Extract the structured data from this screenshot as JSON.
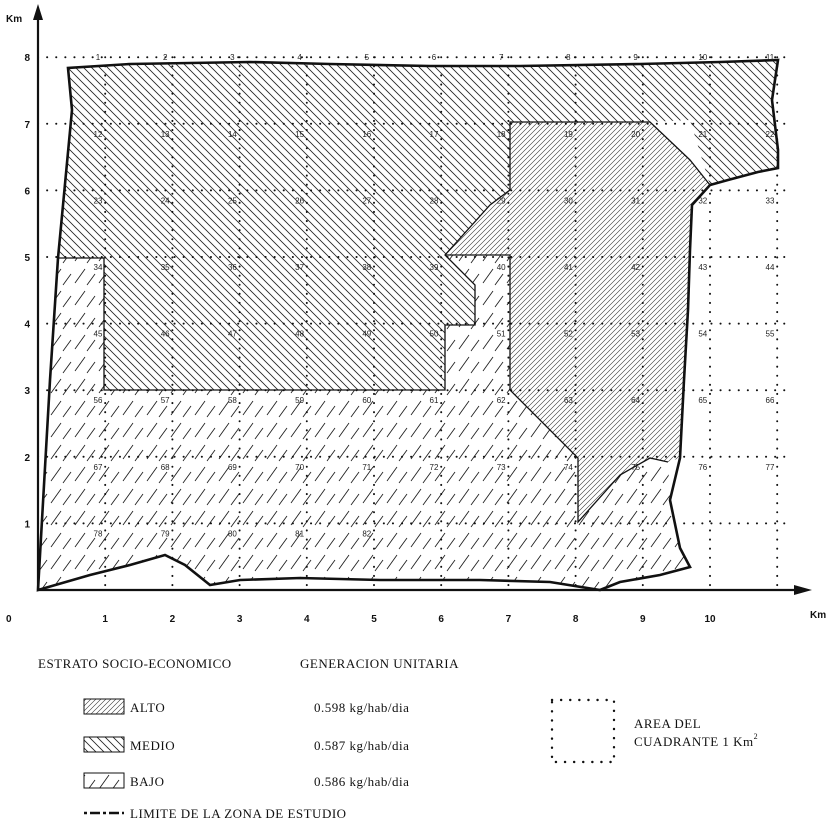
{
  "axes": {
    "y_unit": "Km",
    "x_unit": "Km",
    "origin": "0",
    "x_ticks": [
      "1",
      "2",
      "3",
      "4",
      "5",
      "6",
      "7",
      "8",
      "9",
      "10"
    ],
    "y_ticks": [
      "1",
      "2",
      "3",
      "4",
      "5",
      "6",
      "7",
      "8"
    ]
  },
  "cells": [
    "1",
    "2",
    "3",
    "4",
    "5",
    "6",
    "7",
    "8",
    "9",
    "10",
    "11",
    "12",
    "13",
    "14",
    "15",
    "16",
    "17",
    "18",
    "19",
    "20",
    "21",
    "22",
    "23",
    "24",
    "25",
    "26",
    "27",
    "28",
    "29",
    "30",
    "31",
    "32",
    "33",
    "34",
    "35",
    "36",
    "37",
    "38",
    "39",
    "40",
    "41",
    "42",
    "43",
    "44",
    "45",
    "46",
    "47",
    "48",
    "49",
    "50",
    "51",
    "52",
    "53",
    "54",
    "55",
    "56",
    "57",
    "58",
    "59",
    "60",
    "61",
    "62",
    "63",
    "64",
    "65",
    "66",
    "67",
    "68",
    "69",
    "70",
    "71",
    "72",
    "73",
    "74",
    "75",
    "76",
    "77",
    "78",
    "79",
    "80",
    "81",
    "82"
  ],
  "legend": {
    "header_stratum": "ESTRATO SOCIO-ECONOMICO",
    "header_generation": "GENERACION UNITARIA",
    "items": [
      {
        "label": "ALTO",
        "value": "0.598 kg/hab/dia",
        "pattern": "alto"
      },
      {
        "label": "MEDIO",
        "value": "0.587 kg/hab/dia",
        "pattern": "medio"
      },
      {
        "label": "BAJO",
        "value": "0.586 kg/hab/dia",
        "pattern": "bajo"
      }
    ],
    "boundary_label": "LIMITE DE LA ZONA DE ESTUDIO",
    "area_label_line1": "AREA DEL",
    "area_label_line2": "CUADRANTE 1 Km",
    "area_label_sup": "2"
  },
  "colors": {
    "ink": "#111111",
    "background": "#ffffff"
  }
}
